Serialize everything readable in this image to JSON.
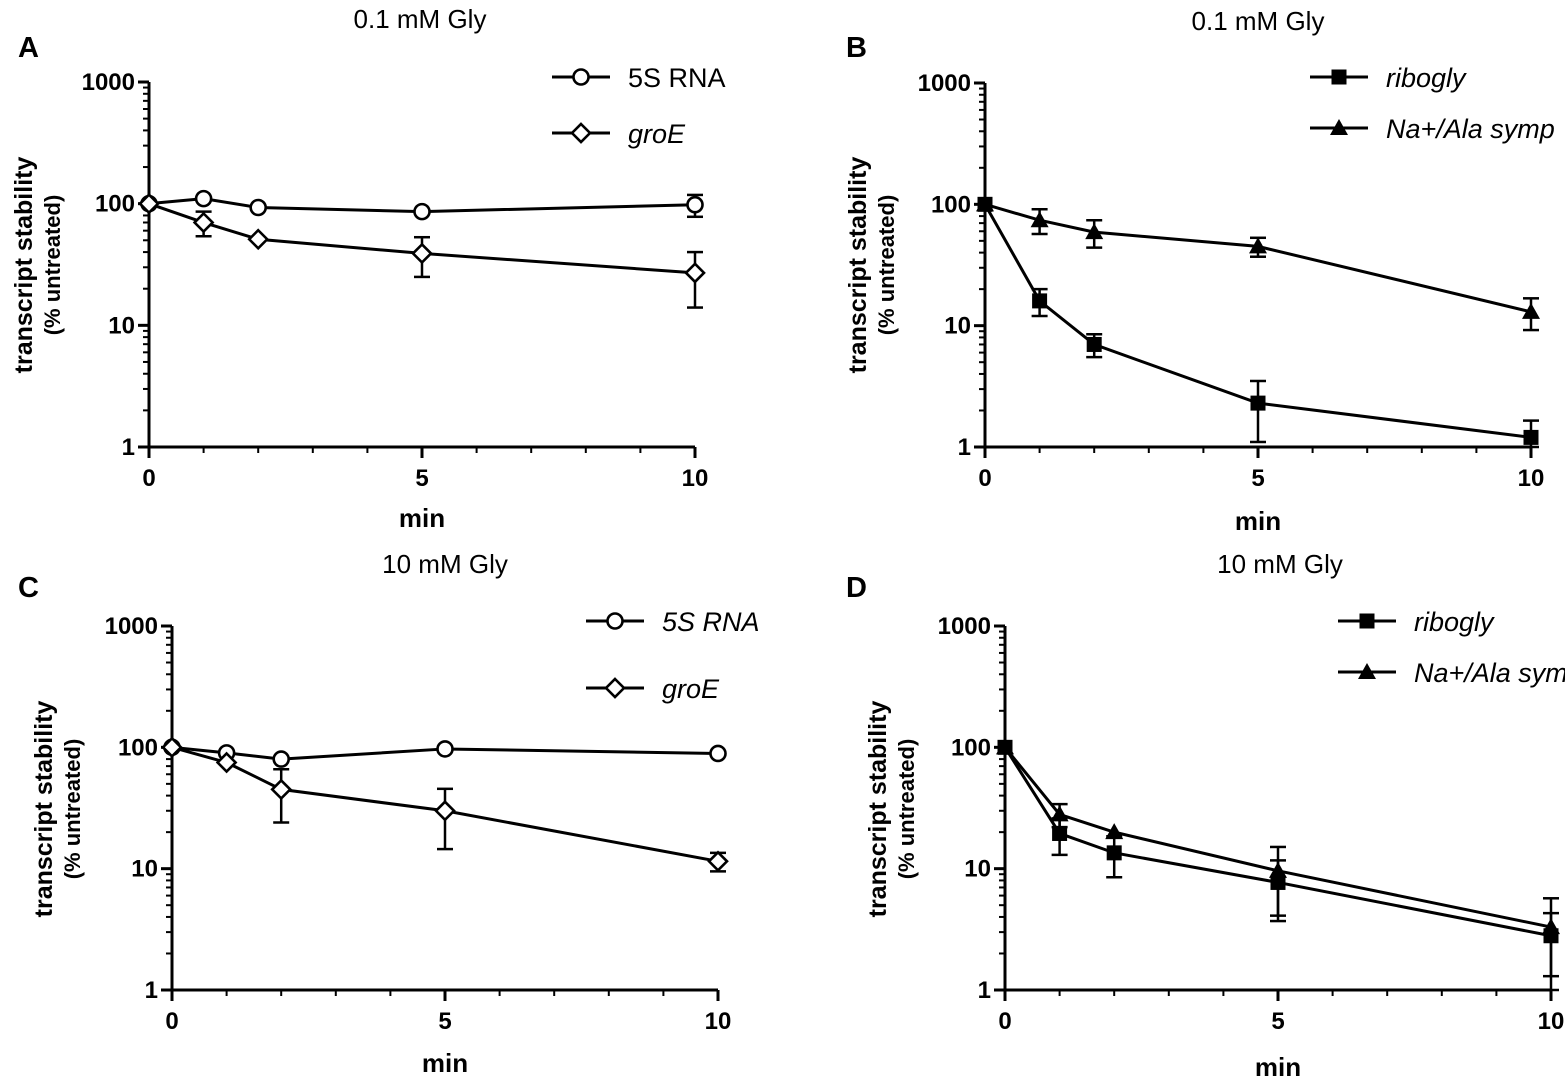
{
  "colors": {
    "ink": "#000000",
    "background": "#ffffff"
  },
  "chart_data": [
    {
      "panel": "A",
      "type": "line",
      "title": "0.1 mM Gly",
      "xlabel": "min",
      "ylabel": "transcript stability",
      "ylabel2": "(% untreated)",
      "yscale": "log",
      "ylim": [
        1,
        1000
      ],
      "xlim": [
        0,
        10
      ],
      "xticks": [
        "0",
        "5",
        "10"
      ],
      "yticks": [
        "1",
        "10",
        "100",
        "1000"
      ],
      "legend_position": "top-right",
      "series": [
        {
          "name": "5S RNA",
          "italic": false,
          "marker": "circle-open",
          "x": [
            0,
            1,
            2,
            5,
            10
          ],
          "y": [
            100,
            110,
            93,
            86,
            98
          ],
          "err": [
            0,
            0,
            0,
            0,
            20
          ]
        },
        {
          "name": "groE",
          "italic": true,
          "marker": "diamond-open",
          "x": [
            0,
            1,
            2,
            5,
            10
          ],
          "y": [
            100,
            70,
            51,
            39,
            27
          ],
          "err": [
            0,
            16,
            0,
            14,
            13
          ]
        }
      ]
    },
    {
      "panel": "B",
      "type": "line",
      "title": "0.1 mM Gly",
      "xlabel": "min",
      "ylabel": "transcript stability",
      "ylabel2": "(% untreated)",
      "yscale": "log",
      "ylim": [
        1,
        1000
      ],
      "xlim": [
        0,
        10
      ],
      "xticks": [
        "0",
        "5",
        "10"
      ],
      "yticks": [
        "1",
        "10",
        "100",
        "1000"
      ],
      "legend_position": "top-right",
      "series": [
        {
          "name": "ribogly",
          "italic": true,
          "marker": "square-filled",
          "x": [
            0,
            1,
            2,
            5,
            10
          ],
          "y": [
            100,
            16,
            7,
            2.3,
            1.2
          ],
          "err": [
            0,
            4,
            1.5,
            1.2,
            0.45
          ]
        },
        {
          "name": "Na+/Ala symp",
          "italic": true,
          "marker": "triangle-filled",
          "x": [
            0,
            1,
            2,
            5,
            10
          ],
          "y": [
            100,
            74,
            59,
            45,
            13
          ],
          "err": [
            0,
            17,
            15,
            8,
            3.8
          ]
        }
      ]
    },
    {
      "panel": "C",
      "type": "line",
      "title": "10 mM Gly",
      "xlabel": "min",
      "ylabel": "transcript stability",
      "ylabel2": "(% untreated)",
      "yscale": "log",
      "ylim": [
        1,
        1000
      ],
      "xlim": [
        0,
        10
      ],
      "xticks": [
        "0",
        "5",
        "10"
      ],
      "yticks": [
        "1",
        "10",
        "100",
        "1000"
      ],
      "legend_position": "top-right",
      "series": [
        {
          "name": "5S RNA",
          "italic": true,
          "marker": "circle-open",
          "x": [
            0,
            1,
            2,
            5,
            10
          ],
          "y": [
            100,
            90,
            80,
            97,
            89
          ],
          "err": [
            0,
            0,
            0,
            0,
            0
          ]
        },
        {
          "name": "groE",
          "italic": true,
          "marker": "diamond-open",
          "x": [
            0,
            1,
            2,
            5,
            10
          ],
          "y": [
            100,
            75,
            45,
            30,
            11.5
          ],
          "err": [
            0,
            0,
            21,
            15.5,
            2
          ]
        }
      ]
    },
    {
      "panel": "D",
      "type": "line",
      "title": "10 mM Gly",
      "xlabel": "min",
      "ylabel": "transcript stability",
      "ylabel2": "(% untreated)",
      "yscale": "log",
      "ylim": [
        1,
        1000
      ],
      "xlim": [
        0,
        10
      ],
      "xticks": [
        "0",
        "5",
        "10"
      ],
      "yticks": [
        "1",
        "10",
        "100",
        "1000"
      ],
      "legend_position": "top-right",
      "series": [
        {
          "name": "ribogly",
          "italic": true,
          "marker": "square-filled",
          "x": [
            0,
            1,
            2,
            5,
            10
          ],
          "y": [
            100,
            19.5,
            13.5,
            7.7,
            2.8
          ],
          "err": [
            0,
            6.5,
            5,
            4,
            1.5
          ]
        },
        {
          "name": "Na+/Ala sym",
          "italic": true,
          "marker": "triangle-filled",
          "x": [
            0,
            1,
            2,
            5,
            10
          ],
          "y": [
            100,
            28,
            20,
            9.6,
            3.3
          ],
          "err": [
            0,
            6,
            0,
            5.5,
            2.4
          ]
        }
      ]
    }
  ]
}
